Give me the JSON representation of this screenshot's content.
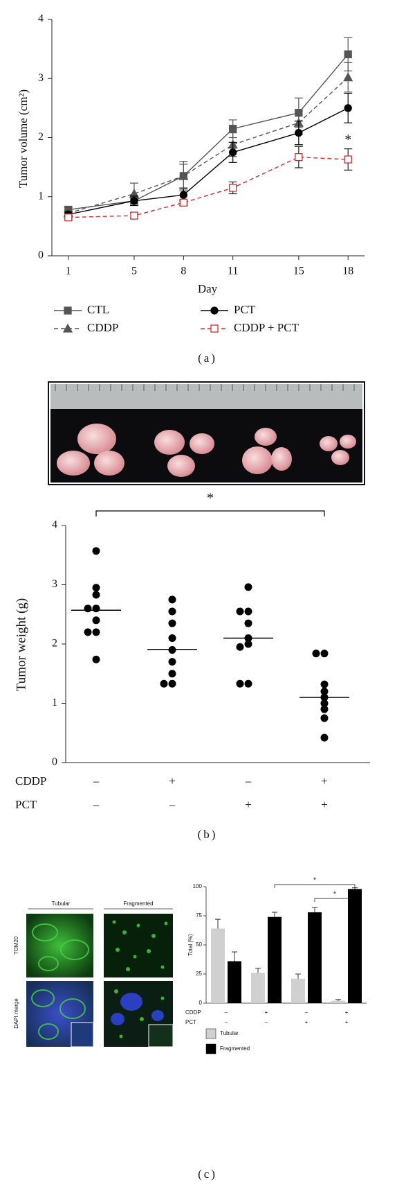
{
  "chart_data": [
    {
      "type": "line",
      "panel": "(a)",
      "x_label": "Day",
      "y_label": "Tumor volume (cm²)",
      "x": [
        1,
        5,
        8,
        11,
        15,
        18
      ],
      "xlim": [
        0,
        19
      ],
      "xticks": [
        1,
        5,
        8,
        11,
        15,
        18
      ],
      "ylim": [
        0,
        4
      ],
      "yticks": [
        0,
        1,
        2,
        3,
        4
      ],
      "annotation": "*",
      "series": [
        {
          "name": "CTL",
          "color": "#555555",
          "marker": "square",
          "filled": true,
          "dashed": false,
          "values": [
            0.78,
            0.93,
            1.35,
            2.15,
            2.42,
            3.41
          ],
          "errors": [
            0.04,
            0.05,
            0.25,
            0.15,
            0.25,
            0.28
          ]
        },
        {
          "name": "CDDP",
          "color": "#555555",
          "marker": "triangle",
          "filled": true,
          "dashed": true,
          "values": [
            0.72,
            1.05,
            1.35,
            1.88,
            2.25,
            3.02
          ],
          "errors": [
            0.04,
            0.18,
            0.2,
            0.2,
            0.2,
            0.25
          ]
        },
        {
          "name": "PCT",
          "color": "#000000",
          "marker": "circle",
          "filled": true,
          "dashed": false,
          "values": [
            0.7,
            0.93,
            1.03,
            1.75,
            2.08,
            2.5
          ],
          "errors": [
            0.04,
            0.08,
            0.1,
            0.17,
            0.2,
            0.25
          ]
        },
        {
          "name": "CDDP + PCT",
          "color": "#d42a2a",
          "marker": "square",
          "filled": false,
          "dashed": true,
          "values": [
            0.65,
            0.68,
            0.9,
            1.15,
            1.67,
            1.63
          ],
          "errors": [
            0.03,
            0.05,
            0.05,
            0.1,
            0.18,
            0.18
          ]
        }
      ]
    },
    {
      "type": "dot",
      "panel": "(b)",
      "y_label": "Tumor weight (g)",
      "ylim": [
        0,
        4
      ],
      "yticks": [
        0,
        1,
        2,
        3,
        4
      ],
      "color": "#000000",
      "significance": "*",
      "groups": [
        {
          "values": [
            3.57,
            2.95,
            2.83,
            2.6,
            2.6,
            2.4,
            2.2,
            2.2,
            1.74
          ],
          "mean": 2.57
        },
        {
          "values": [
            2.75,
            2.55,
            2.35,
            2.1,
            1.9,
            1.7,
            1.5,
            1.33,
            1.33
          ],
          "mean": 1.91
        },
        {
          "values": [
            2.96,
            2.55,
            2.55,
            2.35,
            2.1,
            2.0,
            1.95,
            1.33,
            1.33
          ],
          "mean": 2.1
        },
        {
          "values": [
            1.84,
            1.84,
            1.32,
            1.2,
            1.1,
            1.0,
            0.9,
            0.75,
            0.42
          ],
          "mean": 1.1
        }
      ],
      "rows": [
        {
          "name": "CDDP",
          "labels": [
            "–",
            "+",
            "–",
            "+"
          ]
        },
        {
          "name": "PCT",
          "labels": [
            "–",
            "–",
            "+",
            "+"
          ]
        }
      ]
    },
    {
      "type": "bar",
      "panel": "(c)",
      "y_label": "Total (%)",
      "ylim": [
        0,
        100
      ],
      "yticks": [
        0,
        25,
        50,
        75,
        100
      ],
      "image_columns": [
        "Tubular",
        "Fragmented"
      ],
      "image_rows": [
        "TOM20",
        "DAPI merge"
      ],
      "significance": [
        "*",
        "*"
      ],
      "series": [
        {
          "name": "Tubular",
          "color": "#d0d0d0",
          "values": [
            64,
            26,
            21,
            2
          ],
          "errors": [
            8,
            4,
            4,
            1
          ]
        },
        {
          "name": "Fragmented",
          "color": "#000000",
          "values": [
            36,
            74,
            78,
            98
          ],
          "errors": [
            8,
            4,
            4,
            1
          ]
        }
      ],
      "rows": [
        {
          "name": "CDDP",
          "labels": [
            "–",
            "+",
            "–",
            "+"
          ]
        },
        {
          "name": "PCT",
          "labels": [
            "–",
            "–",
            "+",
            "+"
          ]
        }
      ]
    }
  ]
}
